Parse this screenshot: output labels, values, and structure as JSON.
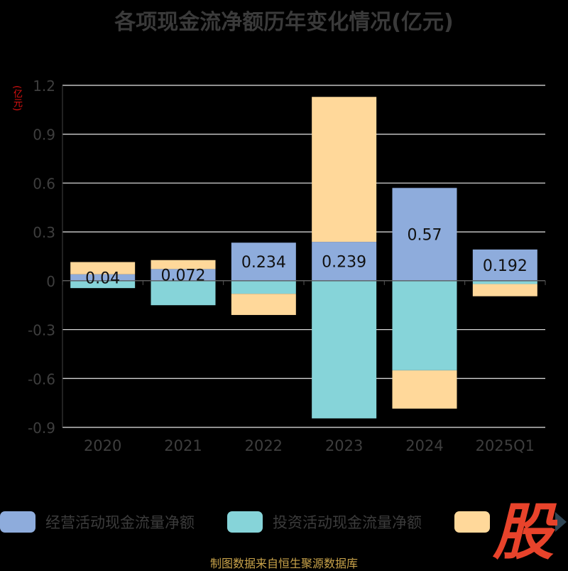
{
  "chart_data": {
    "type": "bar",
    "stacked": true,
    "title": "各项现金流净额历年变化情况(亿元)",
    "ylabel": "(亿元)",
    "ylim": [
      -0.9,
      1.2
    ],
    "yticks": [
      "-0.9",
      "-0.6",
      "-0.3",
      "0",
      "0.3",
      "0.6",
      "0.9",
      "1.2"
    ],
    "grid": true,
    "legend_position": "bottom",
    "categories": [
      "2020",
      "2021",
      "2022",
      "2023",
      "2024",
      "2025Q1"
    ],
    "series": [
      {
        "name": "经营活动现金流量净额",
        "color": "#8eacdc",
        "values": [
          0.04,
          0.072,
          0.234,
          0.239,
          0.57,
          0.192
        ],
        "labels": [
          "0.04",
          "0.072",
          "0.234",
          "0.239",
          "0.57",
          "0.192"
        ]
      },
      {
        "name": "投资活动现金流量净额",
        "color": "#86d4d9",
        "values": [
          -0.045,
          -0.15,
          -0.08,
          -0.845,
          -0.55,
          -0.02
        ]
      },
      {
        "name": "",
        "color": "#ffd89a",
        "values": [
          0.075,
          0.055,
          -0.13,
          0.89,
          -0.235,
          -0.075
        ]
      }
    ]
  },
  "source": "制图数据来自恒生聚源数据库",
  "watermark": "股"
}
